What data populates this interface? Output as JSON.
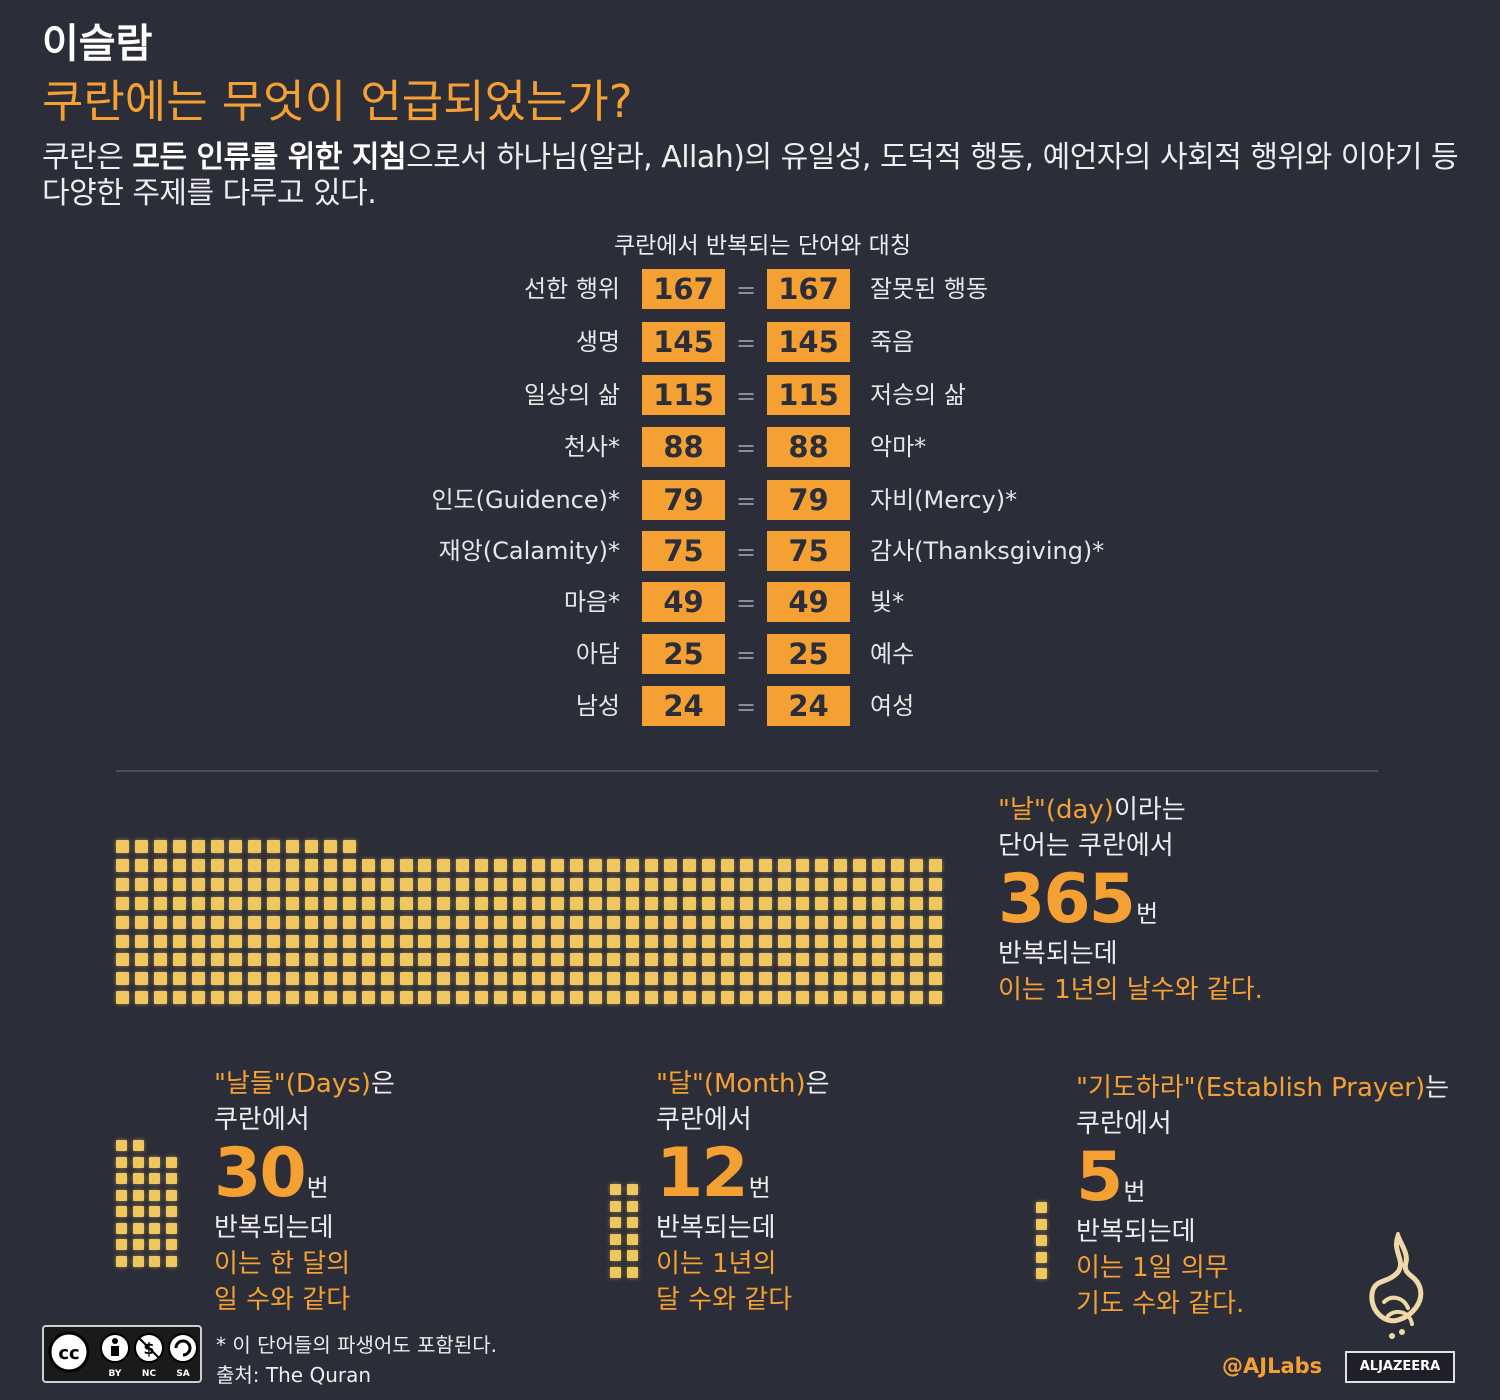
{
  "header": {
    "kicker": "이슬람",
    "headline": "쿠란에는 무엇이 언급되었는가?",
    "intro_before": "쿠란은 ",
    "intro_bold": "모든 인류를 위한 지침",
    "intro_after": "으로서 하나님(알라, Allah)의 유일성, 도덕적 행동, 예언자의 사회적 행위와 이야기 등 다양한 주제를 다루고 있다."
  },
  "pairs": {
    "title": "쿠란에서 반복되는 단어와 대칭",
    "equals": "=",
    "rows": [
      {
        "left": "선한 행위",
        "left_count": "167",
        "right_count": "167",
        "right": "잘못된 행동"
      },
      {
        "left": "생명",
        "left_count": "145",
        "right_count": "145",
        "right": "죽음"
      },
      {
        "left": "일상의 삶",
        "left_count": "115",
        "right_count": "115",
        "right": "저승의 삶"
      },
      {
        "left": "천사*",
        "left_count": "88",
        "right_count": "88",
        "right": "악마*"
      },
      {
        "left": "인도(Guidence)*",
        "left_count": "79",
        "right_count": "79",
        "right": "자비(Mercy)*"
      },
      {
        "left": "재앙(Calamity)*",
        "left_count": "75",
        "right_count": "75",
        "right": "감사(Thanksgiving)*"
      },
      {
        "left": "마음*",
        "left_count": "49",
        "right_count": "49",
        "right": "빛*"
      },
      {
        "left": "아담",
        "left_count": "25",
        "right_count": "25",
        "right": "예수"
      },
      {
        "left": "남성",
        "left_count": "24",
        "right_count": "24",
        "right": "여성"
      }
    ]
  },
  "day_stat": {
    "word": "\"날\"(day)",
    "word_suffix": "이라는",
    "line2": "단어는 쿠란에서",
    "number": "365",
    "unit": "번",
    "line4": "반복되는데",
    "note": "이는 1년의 날수와 같다.",
    "squares": 365
  },
  "small_stats": [
    {
      "word": "\"날들\"(Days)",
      "suffix": "은",
      "line2": "쿠란에서",
      "number": "30",
      "unit": "번",
      "line4": "반복되는데",
      "note1": "이는 한 달의",
      "note2": "일 수와 같다",
      "squares": 30
    },
    {
      "word": "\"달\"(Month)",
      "suffix": "은",
      "line2": "쿠란에서",
      "number": "12",
      "unit": "번",
      "line4": "반복되는데",
      "note1": "이는 1년의",
      "note2": "달 수와 같다",
      "squares": 12
    },
    {
      "word": "\"기도하라\"(Establish Prayer)",
      "suffix": "는",
      "line2": "쿠란에서",
      "number": "5",
      "unit": "번",
      "line4": "반복되는데",
      "note1": "이는 1일 의무",
      "note2": "기도 수와 같다.",
      "squares": 5
    }
  ],
  "footer": {
    "footnote": "* 이 단어들의 파생어도 포함된다.",
    "source": "출처: The Quran",
    "cc_labels": [
      "BY",
      "NC",
      "SA"
    ],
    "handle": "@AJLabs",
    "brand": "ALJAZEERA"
  },
  "colors": {
    "background": "#2b2d38",
    "accent": "#f5a032",
    "square": "#f0c75e"
  }
}
